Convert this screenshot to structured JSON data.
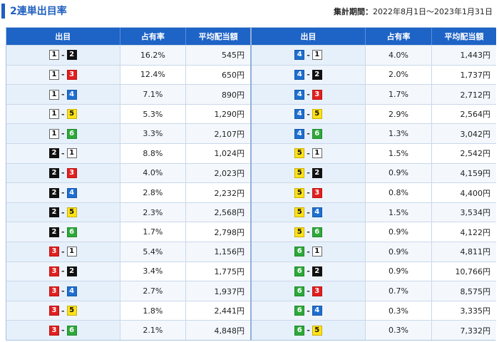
{
  "header": {
    "title": "2連単出目率",
    "period_label": "集計期間：",
    "period_value": "2022年8月1日〜2023年1月31日"
  },
  "columns": {
    "combo": "出目",
    "rate": "占有率",
    "payout": "平均配当額"
  },
  "colors": {
    "boat1": "#ffffff",
    "boat2": "#111111",
    "boat3": "#e02020",
    "boat4": "#1e6fd0",
    "boat5": "#ffe119",
    "boat6": "#2ea83a",
    "header_bg": "#1e63c6",
    "title_color": "#1f5fbf"
  },
  "left_rows": [
    {
      "first": "1",
      "second": "2",
      "rate": "16.2%",
      "payout": "545円"
    },
    {
      "first": "1",
      "second": "3",
      "rate": "12.4%",
      "payout": "650円"
    },
    {
      "first": "1",
      "second": "4",
      "rate": "7.1%",
      "payout": "890円"
    },
    {
      "first": "1",
      "second": "5",
      "rate": "5.3%",
      "payout": "1,290円"
    },
    {
      "first": "1",
      "second": "6",
      "rate": "3.3%",
      "payout": "2,107円"
    },
    {
      "first": "2",
      "second": "1",
      "rate": "8.8%",
      "payout": "1,024円"
    },
    {
      "first": "2",
      "second": "3",
      "rate": "4.0%",
      "payout": "2,023円"
    },
    {
      "first": "2",
      "second": "4",
      "rate": "2.8%",
      "payout": "2,232円"
    },
    {
      "first": "2",
      "second": "5",
      "rate": "2.3%",
      "payout": "2,568円"
    },
    {
      "first": "2",
      "second": "6",
      "rate": "1.7%",
      "payout": "2,798円"
    },
    {
      "first": "3",
      "second": "1",
      "rate": "5.4%",
      "payout": "1,156円"
    },
    {
      "first": "3",
      "second": "2",
      "rate": "3.4%",
      "payout": "1,775円"
    },
    {
      "first": "3",
      "second": "4",
      "rate": "2.7%",
      "payout": "1,937円"
    },
    {
      "first": "3",
      "second": "5",
      "rate": "1.8%",
      "payout": "2,441円"
    },
    {
      "first": "3",
      "second": "6",
      "rate": "2.1%",
      "payout": "4,848円"
    }
  ],
  "right_rows": [
    {
      "first": "4",
      "second": "1",
      "rate": "4.0%",
      "payout": "1,443円"
    },
    {
      "first": "4",
      "second": "2",
      "rate": "2.0%",
      "payout": "1,737円"
    },
    {
      "first": "4",
      "second": "3",
      "rate": "1.7%",
      "payout": "2,712円"
    },
    {
      "first": "4",
      "second": "5",
      "rate": "2.9%",
      "payout": "2,564円"
    },
    {
      "first": "4",
      "second": "6",
      "rate": "1.3%",
      "payout": "3,042円"
    },
    {
      "first": "5",
      "second": "1",
      "rate": "1.5%",
      "payout": "2,542円"
    },
    {
      "first": "5",
      "second": "2",
      "rate": "0.9%",
      "payout": "4,159円"
    },
    {
      "first": "5",
      "second": "3",
      "rate": "0.8%",
      "payout": "4,400円"
    },
    {
      "first": "5",
      "second": "4",
      "rate": "1.5%",
      "payout": "3,534円"
    },
    {
      "first": "5",
      "second": "6",
      "rate": "0.9%",
      "payout": "4,122円"
    },
    {
      "first": "6",
      "second": "1",
      "rate": "0.9%",
      "payout": "4,811円"
    },
    {
      "first": "6",
      "second": "2",
      "rate": "0.9%",
      "payout": "10,766円"
    },
    {
      "first": "6",
      "second": "3",
      "rate": "0.7%",
      "payout": "8,575円"
    },
    {
      "first": "6",
      "second": "4",
      "rate": "0.3%",
      "payout": "3,335円"
    },
    {
      "first": "6",
      "second": "5",
      "rate": "0.3%",
      "payout": "7,332円"
    }
  ]
}
